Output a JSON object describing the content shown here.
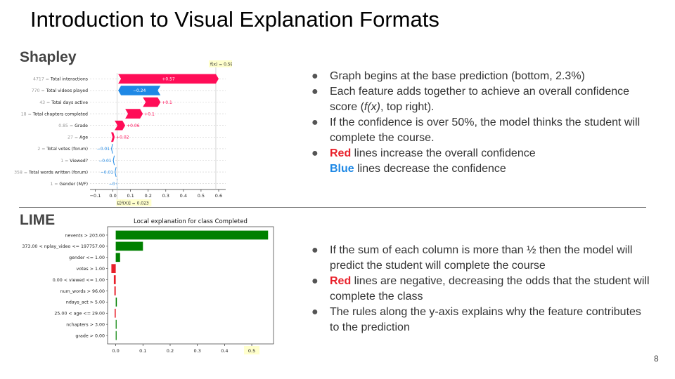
{
  "slide": {
    "title": "Introduction to Visual Explanation Formats",
    "page_number": "8",
    "shapley_label": "Shapley",
    "lime_label": "LIME"
  },
  "shapley_bullets": {
    "b1": "Graph begins at the base prediction (bottom, 2.3%)",
    "b2_pre": "Each feature adds together to achieve an overall confidence score (",
    "b2_em": "f(x)",
    "b2_post": ", top right).",
    "b3": "If the confidence is over 50%, the model thinks the student will complete the course.",
    "b4_red": "Red",
    "b4_rest": " lines increase the overall confidence",
    "b4b_blue": "Blue",
    "b4b_rest": " lines decrease the confidence"
  },
  "lime_bullets": {
    "b1": "If the sum of each column is more than ½ then the model will predict the student will complete the course",
    "b2_red": "Red",
    "b2_rest": " lines are negative, decreasing the odds that the student will complete the class",
    "b3": "The rules along the y-axis explains why the feature contributes to the prediction"
  },
  "colors": {
    "positive_shap": "#ff0d57",
    "negative_shap": "#1e88e5",
    "lime_positive": "#008000",
    "lime_negative": "#e8202a",
    "highlight": "#ffffcc"
  },
  "chart_data": [
    {
      "type": "bar",
      "name": "shapley-waterfall",
      "fx_label": "f(x) = 0.584",
      "base_label": "E[f(X)] = 0.023",
      "base": 0.023,
      "fx": 0.584,
      "features": [
        {
          "value": "4717",
          "name": "Total interactions",
          "contribution": 0.57,
          "label": "+0.57"
        },
        {
          "value": "770",
          "name": "Total videos played",
          "contribution": -0.24,
          "label": "−0.24"
        },
        {
          "value": "43",
          "name": "Total days active",
          "contribution": 0.1,
          "label": "+0.1"
        },
        {
          "value": "18",
          "name": "Total chapters completed",
          "contribution": 0.1,
          "label": "+0.1"
        },
        {
          "value": "0.85",
          "name": "Grade",
          "contribution": 0.06,
          "label": "+0.06"
        },
        {
          "value": "27",
          "name": "Age",
          "contribution": 0.02,
          "label": "+0.02"
        },
        {
          "value": "2",
          "name": "Total votes (forum)",
          "contribution": -0.01,
          "label": "−0.01"
        },
        {
          "value": "1",
          "name": "Viewed?",
          "contribution": -0.01,
          "label": "−0.01"
        },
        {
          "value": "358",
          "name": "Total words written (forum)",
          "contribution": -0.01,
          "label": "−0.01"
        },
        {
          "value": "1",
          "name": "Gender (M/F)",
          "contribution": -0.003,
          "label": "−0"
        }
      ],
      "xticks": [
        "−0.1",
        "0.0",
        "0.1",
        "0.2",
        "0.3",
        "0.4",
        "0.5",
        "0.6"
      ],
      "xtick_values": [
        -0.1,
        0.0,
        0.1,
        0.2,
        0.3,
        0.4,
        0.5,
        0.6
      ],
      "xlim": [
        -0.13,
        0.64
      ]
    },
    {
      "type": "bar",
      "name": "lime-explanation",
      "title": "Local explanation for class Completed",
      "categories": [
        "nevents > 203.00",
        "373.00 < nplay_video <= 197757.00",
        "gender <= 1.00",
        "votes > 1.00",
        "0.00 < viewed <= 1.00",
        "num_words > 96.00",
        "ndays_act > 5.00",
        "25.00 < age <= 29.00",
        "nchapters > 3.00",
        "grade > 0.00"
      ],
      "values": [
        0.56,
        0.1,
        0.016,
        -0.016,
        -0.007,
        -0.005,
        0.004,
        -0.004,
        0.003,
        0.002
      ],
      "xticks": [
        "0.0",
        "0.1",
        "0.2",
        "0.3",
        "0.4",
        "0.5"
      ],
      "xtick_values": [
        0.0,
        0.1,
        0.2,
        0.3,
        0.4,
        0.5
      ],
      "xlim": [
        -0.03,
        0.58
      ]
    }
  ]
}
